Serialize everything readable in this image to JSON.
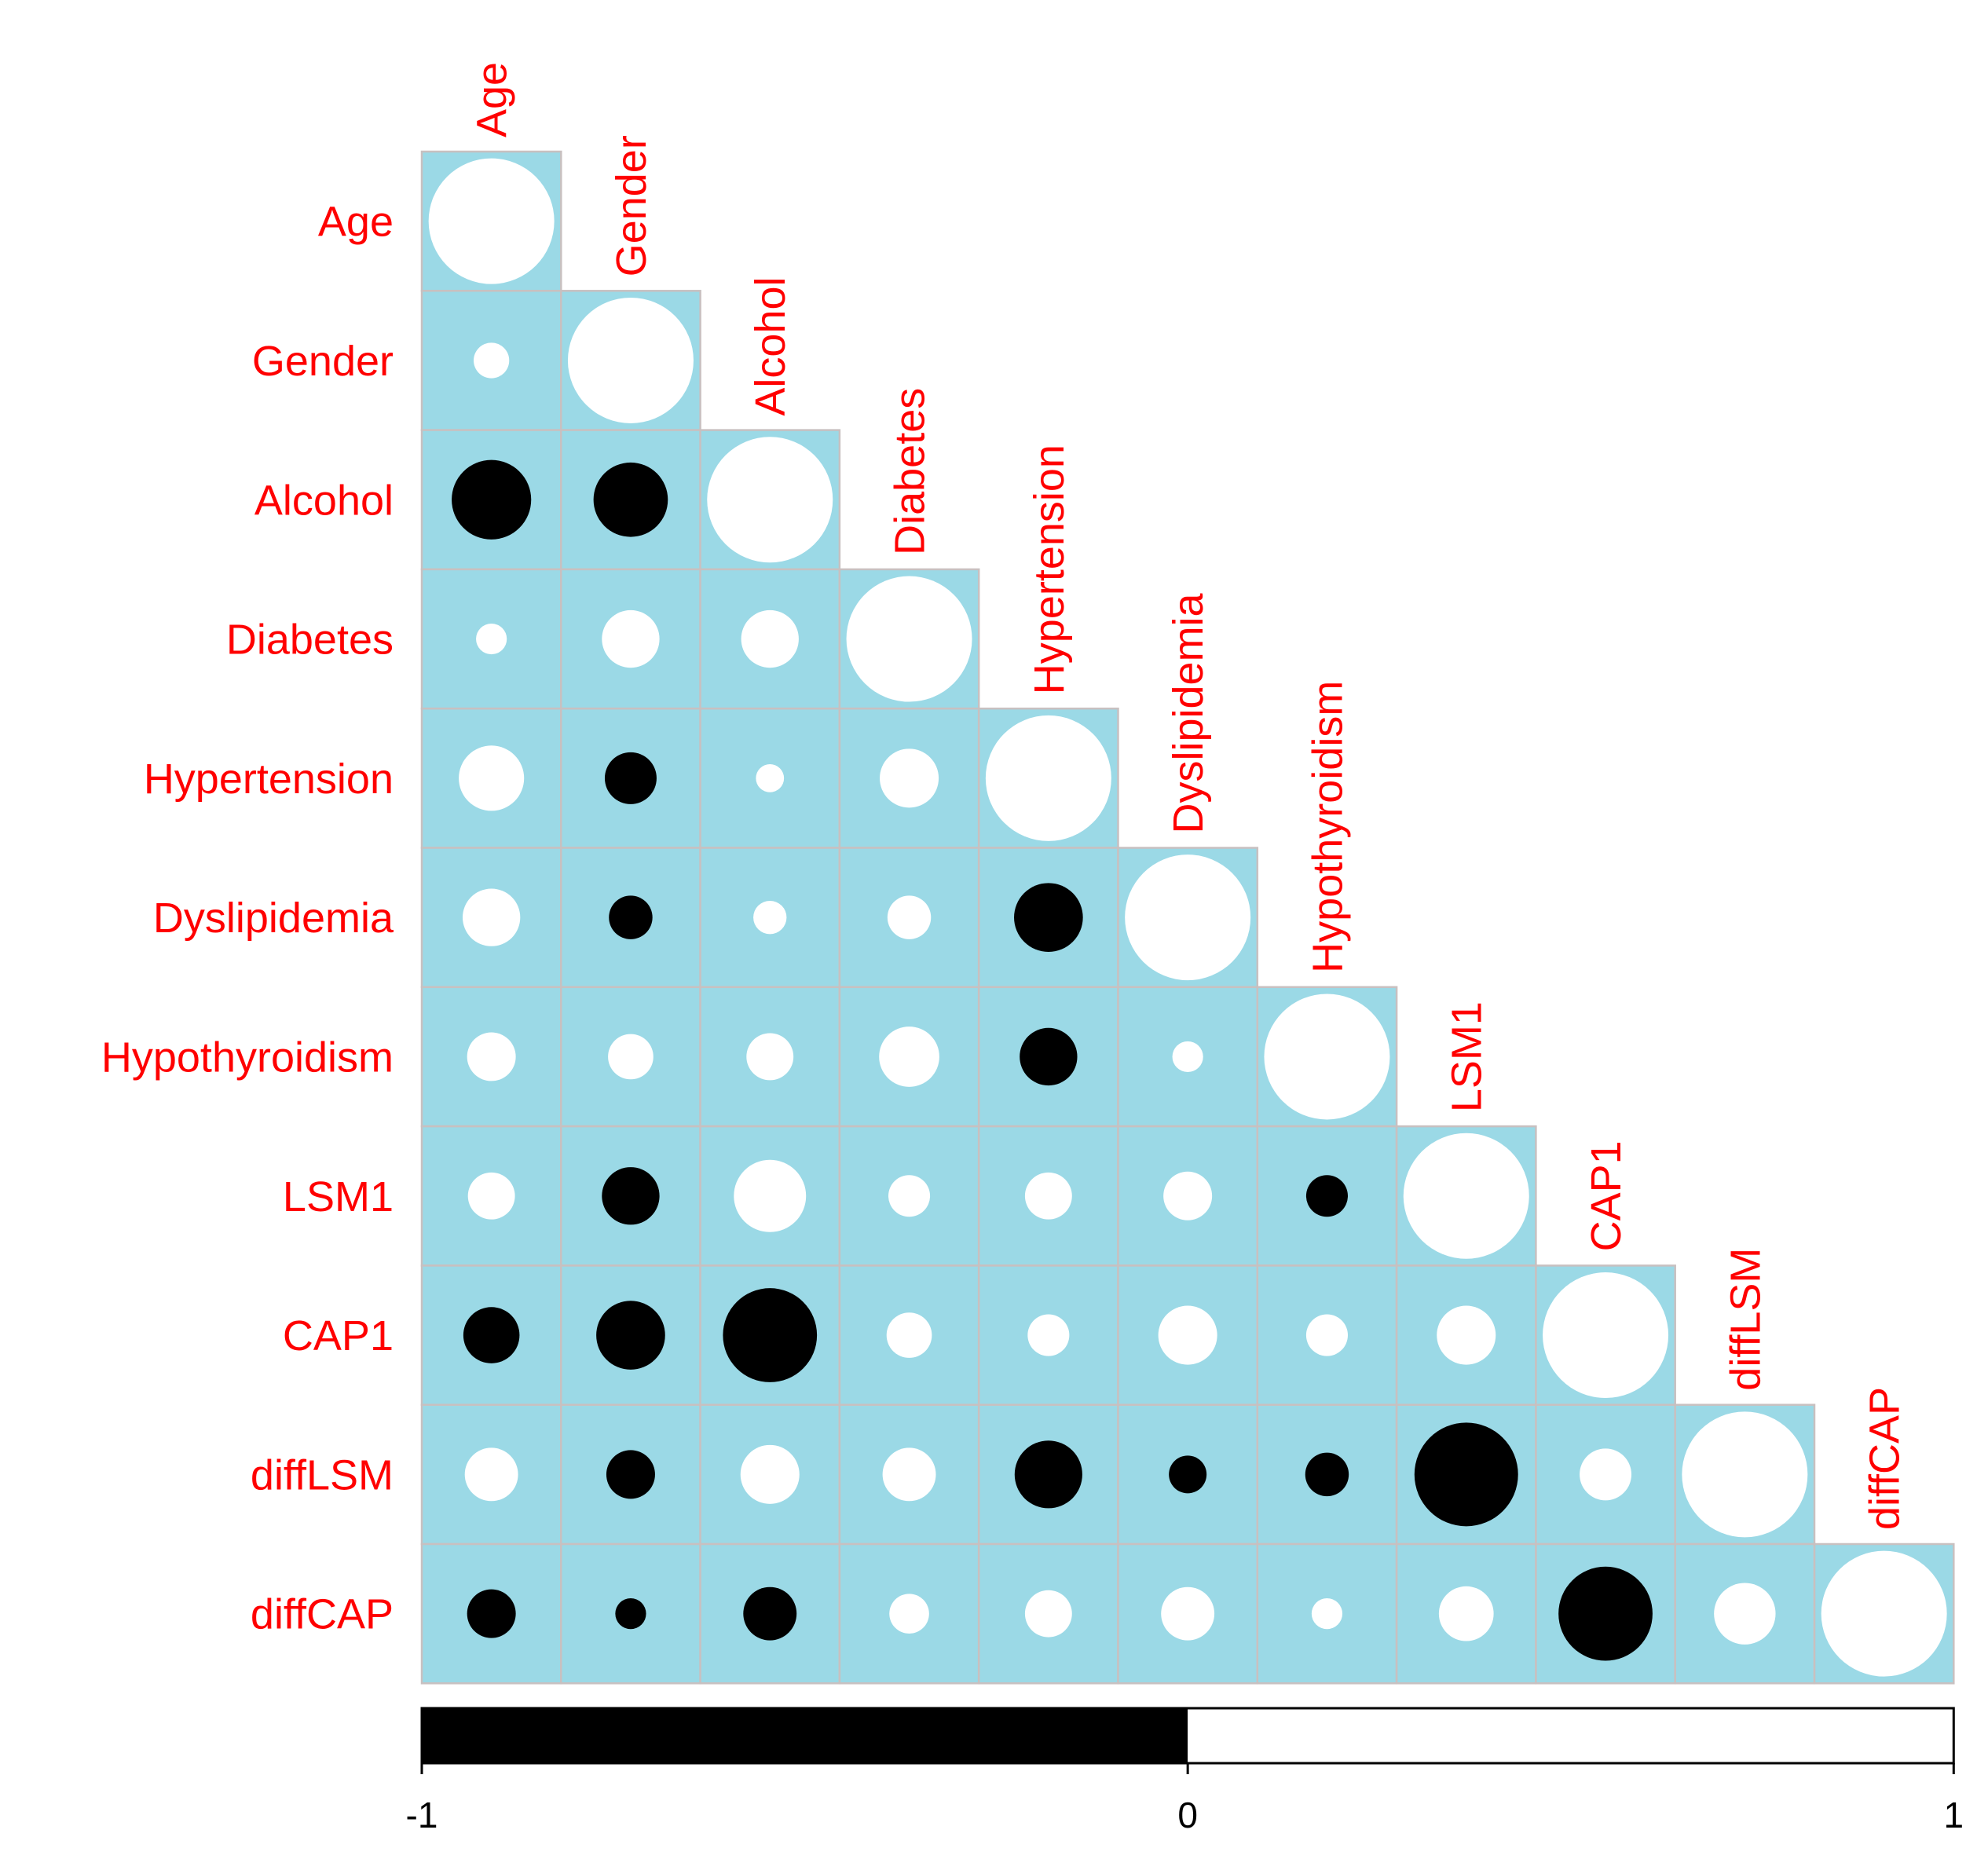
{
  "chart_data": {
    "type": "heatmap",
    "subtype": "correlation-circle-lower-triangle",
    "title": "",
    "variables": [
      "Age",
      "Gender",
      "Alcohol",
      "Diabetes",
      "Hypertension",
      "Dyslipidemia",
      "Hypothyroidism",
      "LSM1",
      "CAP1",
      "diffLSM",
      "diffCAP"
    ],
    "matrix": [
      [
        1.0
      ],
      [
        0.08,
        1.0
      ],
      [
        -0.4,
        -0.35,
        1.0
      ],
      [
        0.06,
        0.21,
        0.21,
        1.0
      ],
      [
        0.27,
        -0.17,
        0.05,
        0.22,
        1.0
      ],
      [
        0.21,
        -0.12,
        0.07,
        0.12,
        -0.3,
        1.0
      ],
      [
        0.15,
        0.13,
        0.14,
        0.23,
        -0.21,
        0.06,
        1.0
      ],
      [
        0.14,
        -0.21,
        0.33,
        0.11,
        0.14,
        0.15,
        -0.11,
        1.0
      ],
      [
        -0.2,
        -0.3,
        -0.56,
        0.13,
        0.11,
        0.22,
        0.11,
        0.22,
        1.0
      ],
      [
        0.18,
        -0.15,
        0.22,
        0.18,
        -0.29,
        -0.09,
        -0.12,
        -0.68,
        0.17,
        1.0
      ],
      [
        -0.15,
        -0.06,
        -0.18,
        0.1,
        0.14,
        0.18,
        0.06,
        0.19,
        -0.56,
        0.24,
        1.0
      ]
    ],
    "colors": {
      "cell_background": "#9bd9e6",
      "grid": "#c8c0c0",
      "positive": "#ffffff",
      "negative": "#000000",
      "label": "#ff0000"
    },
    "colorbar": {
      "ticks": [
        "-1",
        "0",
        "1"
      ],
      "range": [
        -1,
        1
      ],
      "placement": "bottom"
    }
  }
}
